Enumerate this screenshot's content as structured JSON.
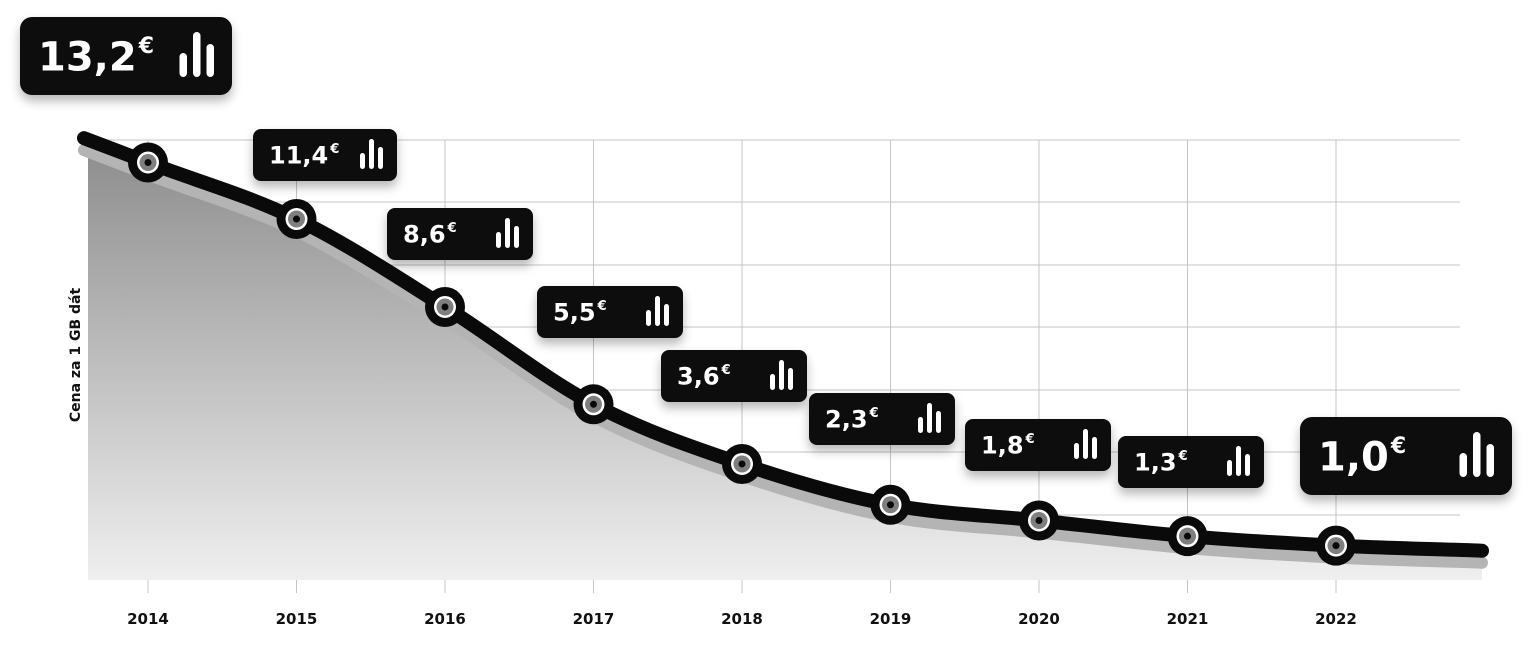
{
  "chart_data": {
    "type": "line",
    "ylabel": "Cena za 1 GB dát",
    "x": [
      "2014",
      "2015",
      "2016",
      "2017",
      "2018",
      "2019",
      "2020",
      "2021",
      "2022"
    ],
    "values": [
      13.2,
      11.4,
      8.6,
      5.5,
      3.6,
      2.3,
      1.8,
      1.3,
      1.0
    ],
    "value_labels": [
      "13,2",
      "11,4",
      "8,6",
      "5,5",
      "3,6",
      "2,3",
      "1,8",
      "1,3",
      "1,0"
    ],
    "currency": "€",
    "grid": true,
    "colors": {
      "line": "#0a0a0a",
      "area_top": "#8e8e8e",
      "area_bottom": "#efefef",
      "badge": "#0a0a0a",
      "badge_text": "#ffffff",
      "grid": "#c4c4c4"
    },
    "badge_icon": "bar-chart-icon"
  }
}
